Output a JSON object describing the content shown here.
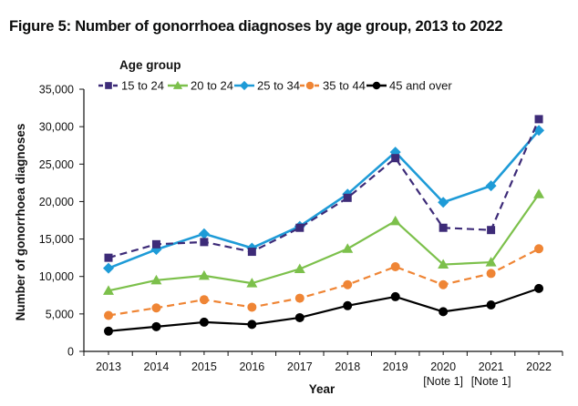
{
  "chart_data": {
    "type": "line",
    "title": "Figure 5: Number of gonorrhoea diagnoses by age group, 2013 to 2022",
    "xlabel": "Year",
    "ylabel": "Number of gonorrhoea diagnoses",
    "ylim": [
      0,
      35000
    ],
    "yticks": [
      0,
      5000,
      10000,
      15000,
      20000,
      25000,
      30000,
      35000
    ],
    "ytick_labels": [
      "0",
      "5,000",
      "10,000",
      "15,000",
      "20,000",
      "25,000",
      "30,000",
      "35,000"
    ],
    "categories": [
      "2013",
      "2014",
      "2015",
      "2016",
      "2017",
      "2018",
      "2019",
      "2020",
      "2021",
      "2022"
    ],
    "category_notes": [
      "",
      "",
      "",
      "",
      "",
      "",
      "",
      "[Note 1]",
      "[Note 1]",
      ""
    ],
    "grid": false,
    "legend_title": "Age group",
    "legend_position": "top",
    "series": [
      {
        "name": "15 to 24",
        "color": "#3d2b78",
        "marker": "square",
        "dashed": true,
        "values": [
          12500,
          14300,
          14600,
          13300,
          16500,
          20500,
          25800,
          16500,
          16200,
          31000
        ]
      },
      {
        "name": "20 to 24",
        "color": "#7cc04b",
        "marker": "triangle",
        "dashed": false,
        "values": [
          8100,
          9500,
          10100,
          9100,
          11000,
          13700,
          17400,
          11600,
          11900,
          21000
        ]
      },
      {
        "name": "25 to 34",
        "color": "#1e9bd7",
        "marker": "diamond",
        "dashed": false,
        "values": [
          11100,
          13600,
          15700,
          13800,
          16700,
          21000,
          26600,
          19900,
          22100,
          29500
        ]
      },
      {
        "name": "35 to 44",
        "color": "#ef8535",
        "marker": "circle",
        "dashed": true,
        "values": [
          4800,
          5800,
          6900,
          5900,
          7100,
          8900,
          11300,
          8900,
          10400,
          13700
        ]
      },
      {
        "name": "45 and over",
        "color": "#000000",
        "marker": "circle",
        "dashed": false,
        "values": [
          2700,
          3300,
          3900,
          3600,
          4500,
          6100,
          7300,
          5300,
          6200,
          8400
        ]
      }
    ]
  }
}
